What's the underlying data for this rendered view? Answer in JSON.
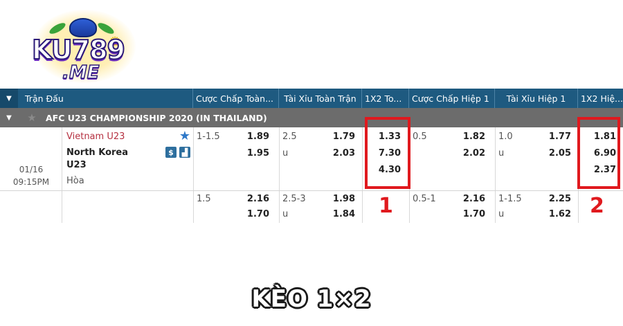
{
  "logo": {
    "text": "KU789",
    "sub": ".ME"
  },
  "header": {
    "match": "Trận Đấu",
    "hdp_full": "Cược Chấp Toàn...",
    "ou_full": "Tài Xỉu Toàn Trận",
    "x12_full": "1X2 To...",
    "hdp_half": "Cược Chấp Hiệp 1",
    "ou_half": "Tài Xỉu Hiệp 1",
    "x12_half": "1X2 Hiệ..."
  },
  "league": {
    "name": "AFC U23 CHAMPIONSHIP 2020 (IN THAILAND)"
  },
  "match": {
    "date": "01/16",
    "time": "09:15PM",
    "home": "Vietnam U23",
    "away": "North Korea U23",
    "draw": "Hòa"
  },
  "odds_row1": {
    "hdp_line": "1-1.5",
    "hdp_home": "1.89",
    "hdp_away": "1.95",
    "ou_line": "2.5",
    "ou_over": "1.79",
    "ou_u": "u",
    "ou_under": "2.03",
    "x12_home": "1.33",
    "x12_away": "7.30",
    "x12_draw": "4.30",
    "hdp1_line": "0.5",
    "hdp1_home": "1.82",
    "hdp1_away": "2.02",
    "ou1_line": "1.0",
    "ou1_over": "1.77",
    "ou1_u": "u",
    "ou1_under": "2.05",
    "x121_home": "1.81",
    "x121_away": "6.90",
    "x121_draw": "2.37"
  },
  "odds_row2": {
    "hdp_line": "1.5",
    "hdp_home": "2.16",
    "hdp_away": "1.70",
    "ou_line": "2.5-3",
    "ou_over": "1.98",
    "ou_u": "u",
    "ou_under": "1.84",
    "hdp1_line": "0.5-1",
    "hdp1_home": "2.16",
    "hdp1_away": "1.70",
    "ou1_line": "1-1.5",
    "ou1_over": "2.25",
    "ou1_u": "u",
    "ou1_under": "1.62"
  },
  "marks": {
    "first": "1",
    "second": "2"
  },
  "caption": "KÈO 1×2",
  "colors": {
    "header_bg": "#1e5a80",
    "league_bg": "#6c6c6c",
    "home_team": "#b53040",
    "highlight": "#e0191e"
  }
}
